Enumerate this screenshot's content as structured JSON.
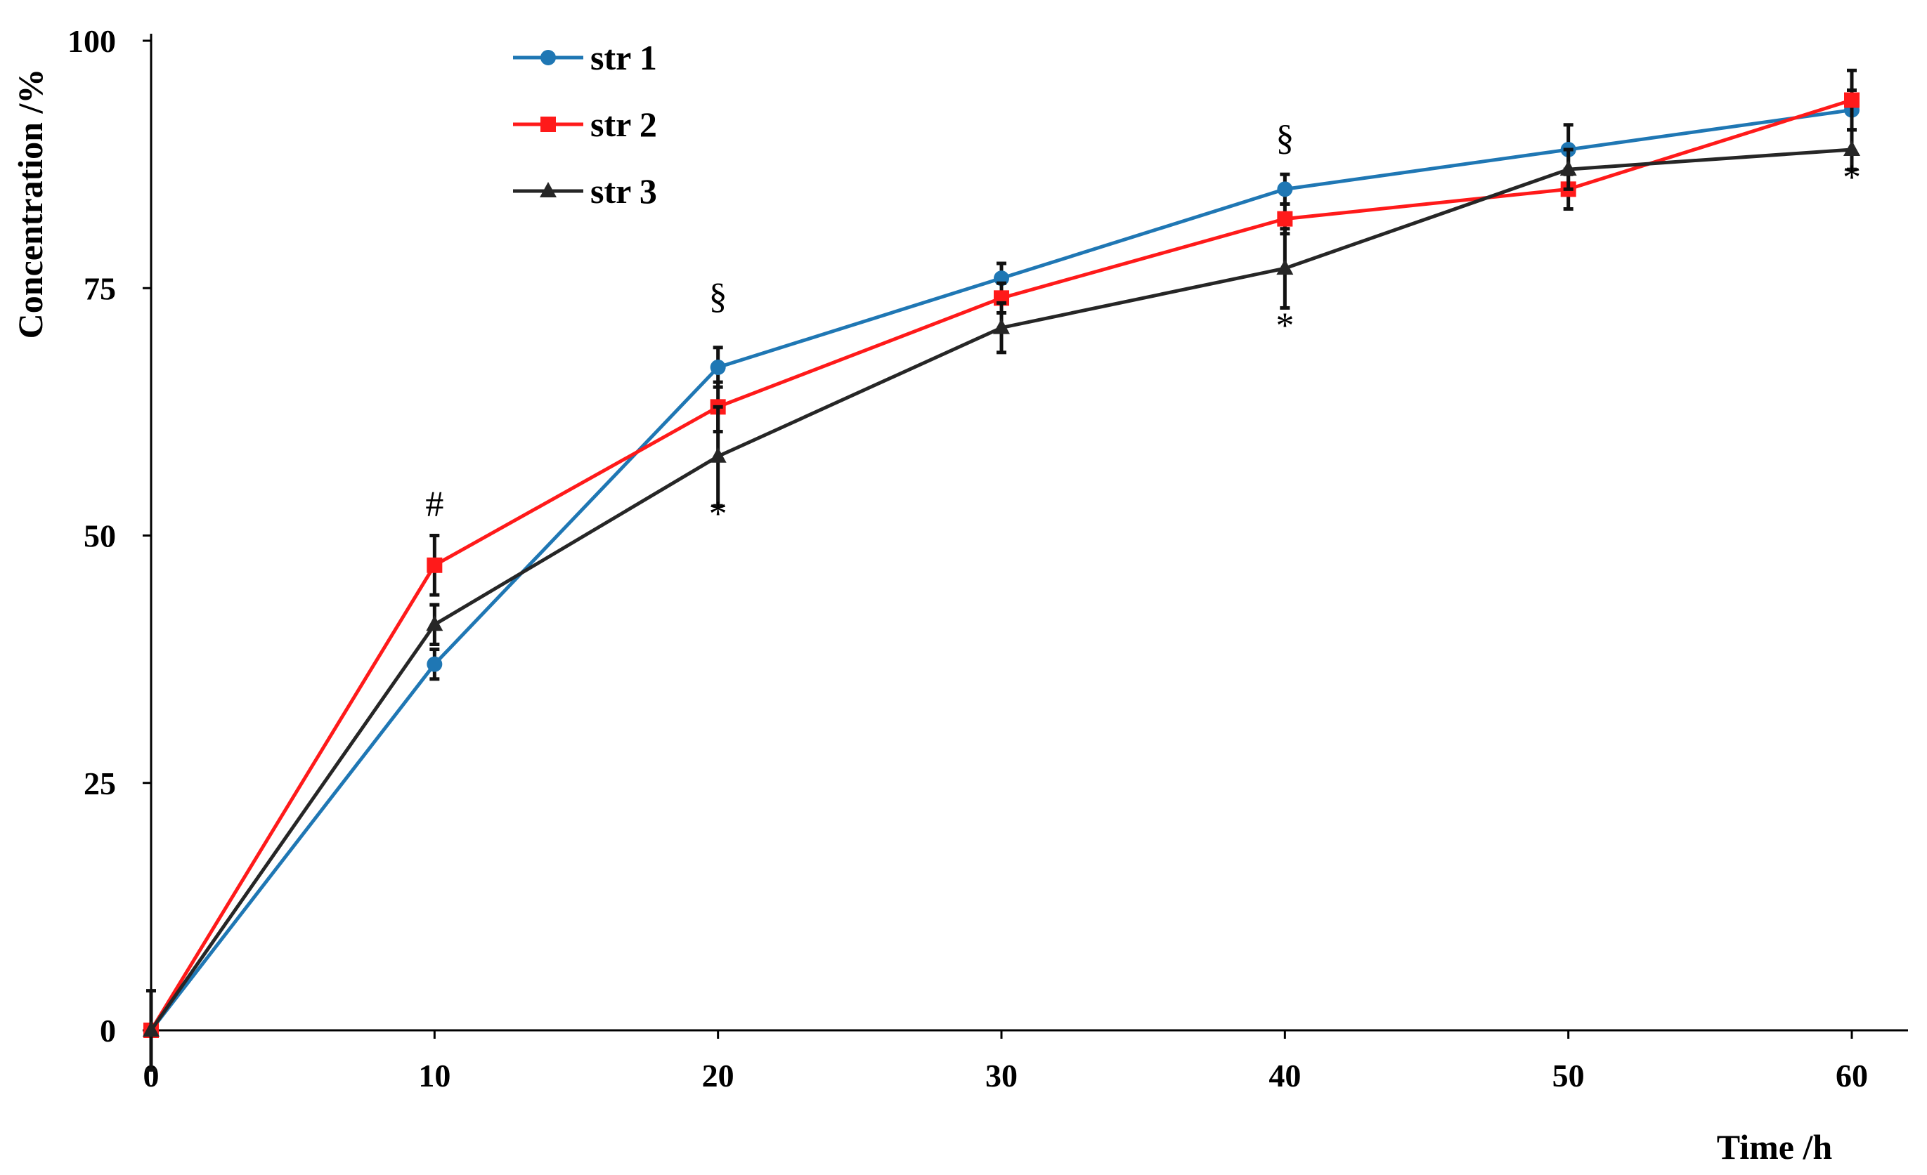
{
  "chart_data": {
    "type": "line",
    "title": "",
    "xlabel": "Time /h",
    "ylabel": "Concentration /%",
    "xlim": [
      0,
      60
    ],
    "ylim": [
      0,
      100
    ],
    "x_ticks": [
      "0",
      "10",
      "20",
      "30",
      "40",
      "50",
      "60"
    ],
    "y_ticks": [
      "0",
      "25",
      "50",
      "75",
      "100"
    ],
    "grid": false,
    "legend_position": "top-left",
    "x": [
      0,
      10,
      20,
      30,
      40,
      50,
      60
    ],
    "series": [
      {
        "name": "str 1",
        "color": "#1f77b4",
        "marker": "circle",
        "values": [
          0,
          37,
          67,
          76,
          85,
          89,
          93
        ],
        "errors": [
          0,
          1.5,
          2,
          1.5,
          1.5,
          2.5,
          2
        ]
      },
      {
        "name": "str 2",
        "color": "#ff1a1a",
        "marker": "square",
        "values": [
          0,
          47,
          63,
          74,
          82,
          85,
          94
        ],
        "errors": [
          0,
          3,
          2.5,
          1.5,
          1.5,
          2,
          3
        ]
      },
      {
        "name": "str 3",
        "color": "#262626",
        "marker": "triangle",
        "values": [
          0,
          41,
          58,
          71,
          77,
          87,
          89
        ],
        "errors": [
          4,
          2,
          5,
          2.5,
          4,
          2,
          2
        ]
      }
    ],
    "annotations": [
      {
        "text": "#",
        "x": 10,
        "y": 52,
        "series": "str 2",
        "position": "above"
      },
      {
        "text": "§",
        "x": 20,
        "y": 73,
        "series": "str 1",
        "position": "above"
      },
      {
        "text": "*",
        "x": 20,
        "y": 51,
        "series": "str 3",
        "position": "below"
      },
      {
        "text": "§",
        "x": 40,
        "y": 89,
        "series": "str 1",
        "position": "above"
      },
      {
        "text": "*",
        "x": 40,
        "y": 70,
        "series": "str 3",
        "position": "below"
      },
      {
        "text": "*",
        "x": 60,
        "y": 85,
        "series": "str 3",
        "position": "below"
      }
    ]
  }
}
